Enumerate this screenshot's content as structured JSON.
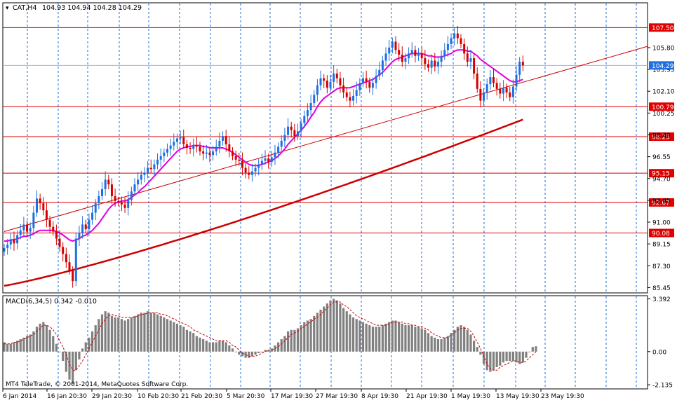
{
  "header": {
    "symbol": "CAT,H4",
    "ohlc": "104.93 104.94 104.28 104.29"
  },
  "macd_label": "MACD(6,34,5) 0.342 -0.010",
  "copyright": "MT4 TeleTrade, © 2001-2014, MetaQuotes Software Corp.",
  "colors": {
    "bull": "#1e6fe0",
    "bear": "#d40000",
    "ma_fast": "#e000e0",
    "ma_slow": "#cc0000",
    "level": "#e00000",
    "grid": "#1e6fe0",
    "macd_hist": "#808080",
    "macd_signal": "#cc0000",
    "price_tag": "#1e6fe0"
  },
  "chart_data": {
    "type": "candlestick",
    "ylim": [
      85.0,
      109.6
    ],
    "price_ticks": [
      "105.80",
      "103.95",
      "102.10",
      "100.25",
      "98.40",
      "96.55",
      "94.70",
      "92.85",
      "91.00",
      "89.15",
      "87.30",
      "85.45"
    ],
    "levels": [
      "107.50",
      "100.79",
      "98.25",
      "95.15",
      "92.67",
      "90.08"
    ],
    "current_price": "104.29",
    "x_labels": [
      "6 Jan 2014",
      "16 Jan 20:30",
      "29 Jan 20:30",
      "10 Feb 20:30",
      "21 Feb 20:30",
      "5 Mar 20:30",
      "17 Mar 19:30",
      "27 Mar 19:30",
      "8 Apr 19:30",
      "21 Apr 19:30",
      "1 May 19:30",
      "13 May 19:30",
      "23 May 19:30"
    ],
    "closes": [
      88.8,
      89.1,
      89.5,
      89.2,
      89.9,
      90.3,
      90.8,
      90.2,
      90.5,
      91.8,
      93.0,
      92.6,
      92.0,
      91.2,
      90.6,
      90.2,
      89.6,
      88.9,
      88.3,
      87.6,
      86.9,
      86.0,
      89.6,
      90.1,
      90.8,
      90.4,
      91.2,
      91.8,
      92.6,
      93.2,
      93.8,
      94.6,
      94.2,
      93.2,
      92.8,
      92.7,
      92.5,
      92.2,
      92.9,
      93.6,
      94.2,
      94.6,
      95.0,
      95.2,
      95.6,
      95.5,
      95.9,
      96.3,
      96.6,
      96.9,
      97.2,
      97.5,
      97.8,
      98.1,
      98.2,
      97.6,
      97.3,
      97.2,
      97.5,
      97.4,
      97.0,
      96.8,
      96.9,
      96.7,
      97.0,
      97.4,
      97.9,
      98.3,
      97.6,
      97.0,
      96.6,
      96.3,
      96.2,
      95.6,
      95.2,
      95.0,
      95.3,
      95.6,
      95.9,
      96.2,
      96.4,
      96.1,
      96.5,
      96.9,
      97.4,
      97.9,
      98.4,
      99.1,
      98.8,
      98.3,
      98.7,
      99.4,
      100.0,
      100.5,
      101.1,
      101.8,
      102.6,
      103.2,
      103.0,
      102.4,
      102.9,
      103.6,
      103.2,
      102.6,
      102.0,
      101.6,
      101.3,
      101.7,
      102.2,
      102.8,
      103.2,
      102.9,
      102.4,
      102.8,
      103.4,
      103.9,
      104.7,
      105.3,
      105.8,
      106.3,
      105.6,
      105.2,
      104.6,
      104.9,
      105.3,
      105.6,
      105.1,
      105.3,
      104.9,
      104.4,
      104.1,
      104.7,
      104.2,
      104.6,
      105.1,
      105.6,
      106.1,
      106.6,
      107.0,
      106.6,
      106.1,
      105.3,
      104.6,
      104.9,
      103.6,
      102.3,
      101.3,
      102.0,
      102.7,
      103.3,
      102.8,
      102.3,
      101.9,
      102.4,
      102.0,
      101.6,
      102.5,
      103.5,
      104.6,
      104.29
    ],
    "ma_fast": [
      89.4,
      89.4,
      89.5,
      89.5,
      89.6,
      89.7,
      89.8,
      89.8,
      89.9,
      90.0,
      90.2,
      90.3,
      90.3,
      90.3,
      90.3,
      90.3,
      90.2,
      90.1,
      89.9,
      89.7,
      89.5,
      89.4,
      89.5,
      89.6,
      89.8,
      89.9,
      90.1,
      90.3,
      90.6,
      90.9,
      91.3,
      91.7,
      92.1,
      92.4,
      92.6,
      92.7,
      92.8,
      92.8,
      92.9,
      93.1,
      93.3,
      93.5,
      93.8,
      94.0,
      94.3,
      94.6,
      94.9,
      95.2,
      95.5,
      95.8,
      96.1,
      96.4,
      96.7,
      97.0,
      97.2,
      97.3,
      97.4,
      97.4,
      97.5,
      97.5,
      97.5,
      97.4,
      97.4,
      97.3,
      97.3,
      97.3,
      97.3,
      97.3,
      97.2,
      97.1,
      96.9,
      96.7,
      96.5,
      96.3,
      96.1,
      95.9,
      95.8,
      95.8,
      95.8,
      95.9,
      96.0,
      96.1,
      96.2,
      96.4,
      96.6,
      96.9,
      97.2,
      97.6,
      97.9,
      98.2,
      98.5,
      98.8,
      99.1,
      99.5,
      99.9,
      100.3,
      100.8,
      101.2,
      101.5,
      101.7,
      101.9,
      102.1,
      102.3,
      102.4,
      102.4,
      102.4,
      102.4,
      102.5,
      102.6,
      102.7,
      102.8,
      102.9,
      103.0,
      103.1,
      103.3,
      103.5,
      103.7,
      104.0,
      104.3,
      104.6,
      104.8,
      104.9,
      105.0,
      105.1,
      105.2,
      105.3,
      105.3,
      105.3,
      105.3,
      105.2,
      105.1,
      105.1,
      105.0,
      105.0,
      105.0,
      105.1,
      105.2,
      105.3,
      105.5,
      105.6,
      105.6,
      105.6,
      105.5,
      105.5,
      105.3,
      105.1,
      104.8,
      104.6,
      104.4,
      104.2,
      104.0,
      103.8,
      103.6,
      103.4,
      103.2,
      103.0,
      102.9,
      102.9,
      103.0,
      103.1
    ],
    "ma_slow_start": 85.6,
    "ma_slow_end": 99.7,
    "trendline": [
      [
        0,
        90.2
      ],
      [
        172,
        103.9
      ]
    ],
    "macd_ylim": [
      -2.4,
      3.6
    ],
    "macd_ticks": [
      "3.392",
      "0.00",
      "-2.135"
    ],
    "macd_hist": [
      0.6,
      0.5,
      0.5,
      0.6,
      0.7,
      0.8,
      0.9,
      1.0,
      1.1,
      1.3,
      1.6,
      1.8,
      1.9,
      1.7,
      1.4,
      1.0,
      0.5,
      0.0,
      -0.6,
      -1.3,
      -1.8,
      -2.1,
      -1.2,
      -0.5,
      0.2,
      0.6,
      0.9,
      1.3,
      1.7,
      2.1,
      2.4,
      2.6,
      2.5,
      2.3,
      2.2,
      2.2,
      2.1,
      2.0,
      2.1,
      2.2,
      2.3,
      2.4,
      2.5,
      2.5,
      2.6,
      2.5,
      2.5,
      2.4,
      2.3,
      2.2,
      2.1,
      2.0,
      1.9,
      1.8,
      1.7,
      1.6,
      1.4,
      1.3,
      1.2,
      1.0,
      0.9,
      0.8,
      0.7,
      0.6,
      0.6,
      0.6,
      0.7,
      0.7,
      0.6,
      0.4,
      0.2,
      0.0,
      -0.2,
      -0.3,
      -0.4,
      -0.4,
      -0.3,
      -0.2,
      -0.1,
      0.0,
      0.1,
      0.1,
      0.2,
      0.4,
      0.6,
      0.8,
      1.0,
      1.3,
      1.4,
      1.4,
      1.5,
      1.7,
      1.9,
      2.0,
      2.1,
      2.3,
      2.5,
      2.7,
      2.9,
      3.1,
      3.3,
      3.4,
      3.3,
      3.1,
      2.8,
      2.6,
      2.4,
      2.2,
      2.1,
      2.0,
      1.9,
      1.8,
      1.7,
      1.6,
      1.6,
      1.6,
      1.7,
      1.8,
      1.9,
      2.0,
      2.0,
      1.9,
      1.8,
      1.7,
      1.7,
      1.7,
      1.6,
      1.6,
      1.5,
      1.4,
      1.2,
      1.0,
      0.9,
      0.8,
      0.8,
      0.9,
      1.0,
      1.2,
      1.4,
      1.6,
      1.7,
      1.6,
      1.4,
      1.1,
      0.7,
      0.3,
      -0.2,
      -0.8,
      -1.2,
      -1.3,
      -1.2,
      -1.0,
      -0.9,
      -0.7,
      -0.6,
      -0.6,
      -0.6,
      -0.7,
      -0.8,
      -0.7,
      -0.4,
      0.0,
      0.3,
      0.342
    ],
    "macd_signal": [
      0.5,
      0.5,
      0.5,
      0.6,
      0.6,
      0.7,
      0.8,
      0.9,
      1.0,
      1.1,
      1.3,
      1.5,
      1.7,
      1.7,
      1.6,
      1.4,
      1.1,
      0.7,
      0.3,
      -0.2,
      -0.8,
      -1.2,
      -1.2,
      -0.9,
      -0.6,
      -0.2,
      0.2,
      0.6,
      1.0,
      1.4,
      1.8,
      2.1,
      2.3,
      2.4,
      2.3,
      2.3,
      2.2,
      2.2,
      2.2,
      2.2,
      2.2,
      2.3,
      2.4,
      2.4,
      2.5,
      2.5,
      2.5,
      2.5,
      2.4,
      2.4,
      2.3,
      2.2,
      2.1,
      2.0,
      1.9,
      1.8,
      1.7,
      1.6,
      1.4,
      1.3,
      1.2,
      1.1,
      1.0,
      0.9,
      0.8,
      0.7,
      0.7,
      0.7,
      0.7,
      0.6,
      0.4,
      0.3,
      0.1,
      -0.1,
      -0.2,
      -0.3,
      -0.3,
      -0.3,
      -0.2,
      -0.1,
      0.0,
      0.1,
      0.1,
      0.2,
      0.3,
      0.5,
      0.7,
      0.9,
      1.1,
      1.2,
      1.3,
      1.5,
      1.6,
      1.8,
      1.9,
      2.1,
      2.2,
      2.4,
      2.6,
      2.8,
      3.0,
      3.2,
      3.2,
      3.2,
      3.0,
      2.9,
      2.7,
      2.5,
      2.3,
      2.2,
      2.1,
      2.0,
      1.9,
      1.8,
      1.7,
      1.7,
      1.7,
      1.7,
      1.8,
      1.9,
      1.9,
      1.9,
      1.9,
      1.8,
      1.8,
      1.7,
      1.7,
      1.6,
      1.6,
      1.5,
      1.4,
      1.2,
      1.1,
      1.0,
      0.9,
      0.9,
      0.9,
      1.1,
      1.2,
      1.4,
      1.5,
      1.5,
      1.5,
      1.3,
      1.0,
      0.6,
      0.2,
      -0.3,
      -0.8,
      -1.1,
      -1.2,
      -1.2,
      -1.0,
      -0.9,
      -0.8,
      -0.7,
      -0.6,
      -0.6,
      -0.7,
      -0.7,
      -0.6,
      -0.4,
      -0.2,
      -0.01
    ]
  }
}
